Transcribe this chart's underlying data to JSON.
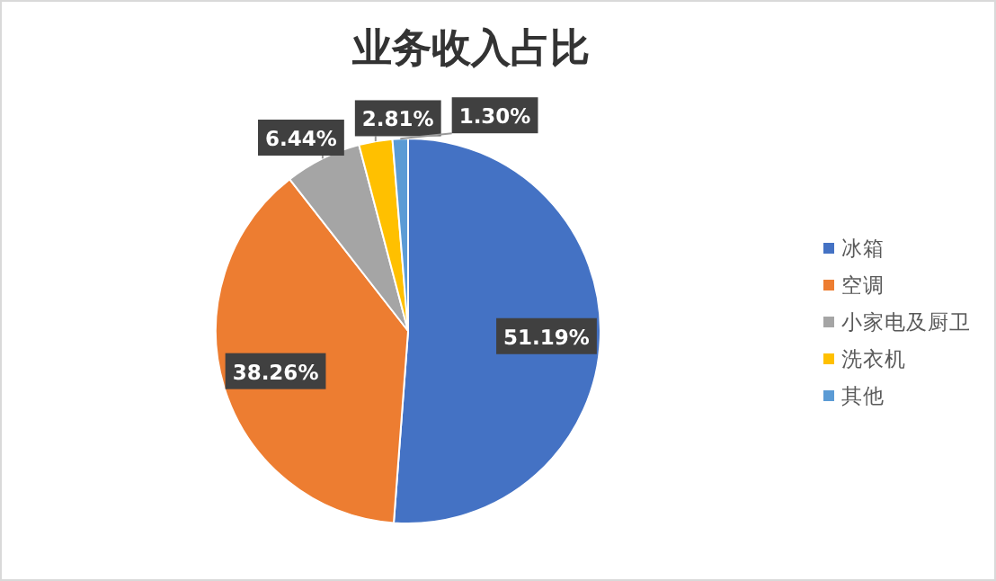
{
  "chart_data": {
    "type": "pie",
    "title": "业务收入占比",
    "categories": [
      "冰箱",
      "空调",
      "小家电及厨卫",
      "洗衣机",
      "其他"
    ],
    "values": [
      51.19,
      38.26,
      6.44,
      2.81,
      1.3
    ],
    "colors": [
      "#4472c4",
      "#ed7d31",
      "#a5a5a5",
      "#ffc000",
      "#5b9bd5"
    ],
    "value_labels": [
      "51.19%",
      "38.26%",
      "6.44%",
      "2.81%",
      "1.30%"
    ],
    "legend": "right"
  }
}
